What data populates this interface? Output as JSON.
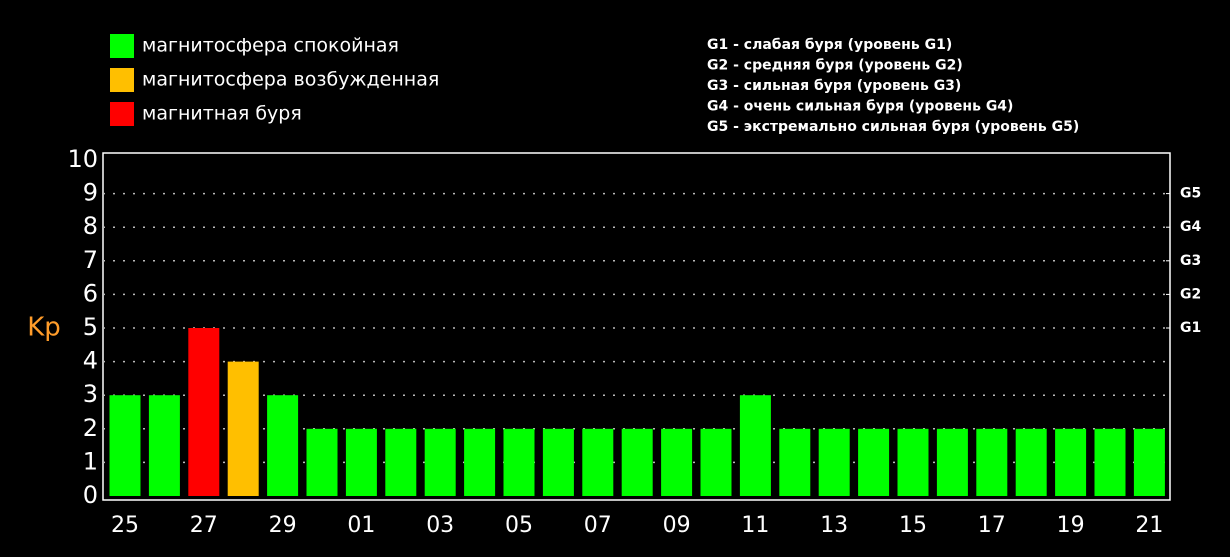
{
  "chart_data": {
    "type": "bar",
    "y_label": "Kp",
    "legend": [
      {
        "name": "магнитосфера спокойная",
        "color": "#00ff00"
      },
      {
        "name": "магнитосфера возбужденная",
        "color": "#ffbf00"
      },
      {
        "name": "магнитная буря",
        "color": "#ff0000"
      }
    ],
    "annotations": [
      "G1 - слабая буря (уровень G1)",
      "G2 - средняя буря (уровень G2)",
      "G3 - сильная буря (уровень G3)",
      "G4 - очень сильная буря (уровень G4)",
      "G5 - экстремально сильная буря (уровень G5)"
    ],
    "categories": [
      "25",
      null,
      "27",
      null,
      "29",
      null,
      "01",
      null,
      "03",
      null,
      "05",
      null,
      "07",
      null,
      "09",
      null,
      "11",
      null,
      "13",
      null,
      "15",
      null,
      "17",
      null,
      "19",
      null,
      "21"
    ],
    "values": [
      3,
      3,
      5,
      4,
      3,
      2,
      2,
      2,
      2,
      2,
      2,
      2,
      2,
      2,
      2,
      2,
      3,
      2,
      2,
      2,
      2,
      2,
      2,
      2,
      2,
      2,
      2
    ],
    "colors": [
      "#00ff00",
      "#00ff00",
      "#ff0000",
      "#ffbf00",
      "#00ff00",
      "#00ff00",
      "#00ff00",
      "#00ff00",
      "#00ff00",
      "#00ff00",
      "#00ff00",
      "#00ff00",
      "#00ff00",
      "#00ff00",
      "#00ff00",
      "#00ff00",
      "#00ff00",
      "#00ff00",
      "#00ff00",
      "#00ff00",
      "#00ff00",
      "#00ff00",
      "#00ff00",
      "#00ff00",
      "#00ff00",
      "#00ff00",
      "#00ff00"
    ],
    "ylim": [
      0,
      10
    ],
    "yticks": [
      0,
      1,
      2,
      3,
      4,
      5,
      6,
      7,
      8,
      9,
      10
    ],
    "y2lim": [
      0,
      10
    ],
    "y2ticks": [
      {
        "value": 5,
        "label": "G1"
      },
      {
        "value": 6,
        "label": "G2"
      },
      {
        "value": 7,
        "label": "G3"
      },
      {
        "value": 8,
        "label": "G4"
      },
      {
        "value": 9,
        "label": "G5"
      }
    ],
    "grid": true
  }
}
